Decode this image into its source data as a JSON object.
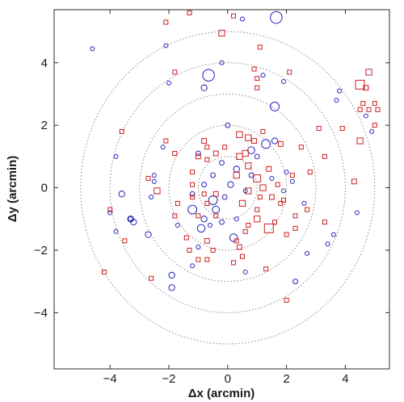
{
  "chart_data": {
    "type": "scatter",
    "title": "",
    "xlabel": "Δx (arcmin)",
    "ylabel": "Δy (arcmin)",
    "xlim": [
      -5.9,
      5.5
    ],
    "ylim": [
      -5.8,
      5.7
    ],
    "xticks": [
      -4,
      -2,
      0,
      2,
      4
    ],
    "yticks": [
      -4,
      -2,
      0,
      2,
      4
    ],
    "xtick_labels": [
      "−4",
      "−2",
      "0",
      "2",
      "4"
    ],
    "ytick_labels": [
      "−4",
      "−2",
      "0",
      "2",
      "4"
    ],
    "grid": false,
    "reference_circles": {
      "center": [
        0,
        0
      ],
      "radii": [
        1,
        2,
        3,
        4,
        5
      ],
      "style": "dotted",
      "color": "#888888"
    },
    "series": [
      {
        "marker": "circle",
        "color": "#2222bb",
        "points": [
          {
            "x": 1.65,
            "y": 5.45,
            "size": 0.2
          },
          {
            "x": -0.65,
            "y": 3.6,
            "size": 0.2
          },
          {
            "x": 1.6,
            "y": 2.6,
            "size": 0.15
          },
          {
            "x": -0.8,
            "y": 3.2,
            "size": 0.1
          },
          {
            "x": -2.0,
            "y": 3.35,
            "size": 0.06
          },
          {
            "x": -0.2,
            "y": 4.0,
            "size": 0.04
          },
          {
            "x": -4.6,
            "y": 4.45,
            "size": 0.04
          },
          {
            "x": -2.1,
            "y": 4.55,
            "size": 0.04
          },
          {
            "x": 0.5,
            "y": 5.4,
            "size": 0.04
          },
          {
            "x": 1.2,
            "y": 3.6,
            "size": 0.04
          },
          {
            "x": 1.9,
            "y": 3.4,
            "size": 0.04
          },
          {
            "x": 3.8,
            "y": 3.1,
            "size": 0.04
          },
          {
            "x": 3.7,
            "y": 2.8,
            "size": 0.04
          },
          {
            "x": 4.7,
            "y": 2.3,
            "size": 0.04
          },
          {
            "x": 4.9,
            "y": 1.8,
            "size": 0.04
          },
          {
            "x": -3.8,
            "y": 1.0,
            "size": 0.04
          },
          {
            "x": -2.2,
            "y": 1.3,
            "size": 0.04
          },
          {
            "x": 0.0,
            "y": 2.0,
            "size": 0.08
          },
          {
            "x": 1.3,
            "y": 1.4,
            "size": 0.15
          },
          {
            "x": 1.6,
            "y": 1.5,
            "size": 0.1
          },
          {
            "x": 0.8,
            "y": 1.2,
            "size": 0.12
          },
          {
            "x": 1.0,
            "y": 1.0,
            "size": 0.08
          },
          {
            "x": -1.0,
            "y": 1.1,
            "size": 0.08
          },
          {
            "x": -0.2,
            "y": 0.8,
            "size": 0.08
          },
          {
            "x": 0.3,
            "y": 0.6,
            "size": 0.1
          },
          {
            "x": -0.5,
            "y": 0.4,
            "size": 0.08
          },
          {
            "x": -0.8,
            "y": 0.1,
            "size": 0.08
          },
          {
            "x": -1.2,
            "y": -0.2,
            "size": 0.08
          },
          {
            "x": -0.5,
            "y": -0.4,
            "size": 0.15
          },
          {
            "x": -0.4,
            "y": -0.7,
            "size": 0.12
          },
          {
            "x": -1.2,
            "y": -0.7,
            "size": 0.15
          },
          {
            "x": -0.8,
            "y": -1.0,
            "size": 0.1
          },
          {
            "x": -0.9,
            "y": -1.3,
            "size": 0.13
          },
          {
            "x": -0.2,
            "y": -1.1,
            "size": 0.08
          },
          {
            "x": 0.1,
            "y": 0.1,
            "size": 0.1
          },
          {
            "x": -0.1,
            "y": -0.3,
            "size": 0.08
          },
          {
            "x": 0.2,
            "y": -1.6,
            "size": 0.13
          },
          {
            "x": 0.3,
            "y": -1.0,
            "size": 0.06
          },
          {
            "x": 0.6,
            "y": -0.1,
            "size": 0.06
          },
          {
            "x": 0.8,
            "y": 0.4,
            "size": 0.08
          },
          {
            "x": 1.5,
            "y": 0.3,
            "size": 0.06
          },
          {
            "x": 2.0,
            "y": 0.5,
            "size": 0.04
          },
          {
            "x": 1.9,
            "y": -0.1,
            "size": 0.04
          },
          {
            "x": 2.2,
            "y": 0.2,
            "size": 0.04
          },
          {
            "x": 2.6,
            "y": -0.5,
            "size": 0.04
          },
          {
            "x": -2.5,
            "y": 0.4,
            "size": 0.04
          },
          {
            "x": -2.6,
            "y": -0.3,
            "size": 0.04
          },
          {
            "x": -2.5,
            "y": 0.2,
            "size": 0.04
          },
          {
            "x": -3.6,
            "y": -0.2,
            "size": 0.1
          },
          {
            "x": -3.3,
            "y": -1.0,
            "size": 0.1
          },
          {
            "x": -3.2,
            "y": -1.1,
            "size": 0.1
          },
          {
            "x": -3.3,
            "y": -1.0,
            "size": 0.08
          },
          {
            "x": -2.7,
            "y": -1.5,
            "size": 0.1
          },
          {
            "x": -1.9,
            "y": -2.8,
            "size": 0.1
          },
          {
            "x": -1.9,
            "y": -3.2,
            "size": 0.1
          },
          {
            "x": -1.2,
            "y": -2.5,
            "size": 0.04
          },
          {
            "x": -1.0,
            "y": -1.9,
            "size": 0.04
          },
          {
            "x": -0.6,
            "y": -1.2,
            "size": 0.04
          },
          {
            "x": 0.6,
            "y": -2.7,
            "size": 0.04
          },
          {
            "x": 2.3,
            "y": -3.0,
            "size": 0.08
          },
          {
            "x": 2.7,
            "y": -2.1,
            "size": 0.04
          },
          {
            "x": 3.4,
            "y": -1.8,
            "size": 0.04
          },
          {
            "x": 3.6,
            "y": -1.5,
            "size": 0.04
          },
          {
            "x": 4.4,
            "y": -0.8,
            "size": 0.04
          },
          {
            "x": -3.8,
            "y": -1.4,
            "size": 0.04
          },
          {
            "x": -4.0,
            "y": -0.8,
            "size": 0.04
          },
          {
            "x": -1.7,
            "y": -1.2,
            "size": 0.04
          }
        ]
      },
      {
        "marker": "square",
        "color": "#cc2222",
        "points": [
          {
            "x": -1.3,
            "y": 5.6,
            "size": 0.04
          },
          {
            "x": 0.2,
            "y": 5.5,
            "size": 0.04
          },
          {
            "x": -0.2,
            "y": 4.95,
            "size": 0.1
          },
          {
            "x": -2.1,
            "y": 5.3,
            "size": 0.04
          },
          {
            "x": -1.8,
            "y": 3.7,
            "size": 0.04
          },
          {
            "x": 0.9,
            "y": 3.8,
            "size": 0.04
          },
          {
            "x": 1.0,
            "y": 3.5,
            "size": 0.04
          },
          {
            "x": 1.0,
            "y": 3.2,
            "size": 0.04
          },
          {
            "x": 2.1,
            "y": 3.7,
            "size": 0.04
          },
          {
            "x": 1.1,
            "y": 4.5,
            "size": 0.04
          },
          {
            "x": 4.8,
            "y": 3.7,
            "size": 0.1
          },
          {
            "x": 4.7,
            "y": 3.2,
            "size": 0.08
          },
          {
            "x": 4.5,
            "y": 3.3,
            "size": 0.15
          },
          {
            "x": 4.6,
            "y": 2.7,
            "size": 0.06
          },
          {
            "x": 4.8,
            "y": 2.5,
            "size": 0.06
          },
          {
            "x": 5.0,
            "y": 2.7,
            "size": 0.06
          },
          {
            "x": 5.1,
            "y": 2.5,
            "size": 0.04
          },
          {
            "x": 5.0,
            "y": 2.0,
            "size": 0.04
          },
          {
            "x": 4.5,
            "y": 2.5,
            "size": 0.04
          },
          {
            "x": 3.9,
            "y": 1.9,
            "size": 0.04
          },
          {
            "x": 3.1,
            "y": 1.9,
            "size": 0.04
          },
          {
            "x": 2.5,
            "y": 1.3,
            "size": 0.06
          },
          {
            "x": 4.5,
            "y": 1.5,
            "size": 0.1
          },
          {
            "x": 4.3,
            "y": 0.2,
            "size": 0.08
          },
          {
            "x": 3.3,
            "y": 1.0,
            "size": 0.04
          },
          {
            "x": -3.6,
            "y": 1.8,
            "size": 0.04
          },
          {
            "x": -2.1,
            "y": 1.5,
            "size": 0.04
          },
          {
            "x": -1.8,
            "y": 1.1,
            "size": 0.06
          },
          {
            "x": -0.8,
            "y": 1.5,
            "size": 0.08
          },
          {
            "x": -0.7,
            "y": 1.3,
            "size": 0.06
          },
          {
            "x": -1.0,
            "y": 1.0,
            "size": 0.08
          },
          {
            "x": -1.2,
            "y": 0.5,
            "size": 0.06
          },
          {
            "x": -0.7,
            "y": 0.9,
            "size": 0.06
          },
          {
            "x": -0.4,
            "y": 1.1,
            "size": 0.08
          },
          {
            "x": -0.1,
            "y": 1.3,
            "size": 0.06
          },
          {
            "x": 0.4,
            "y": 1.7,
            "size": 0.1
          },
          {
            "x": 0.7,
            "y": 1.6,
            "size": 0.1
          },
          {
            "x": 0.9,
            "y": 1.5,
            "size": 0.08
          },
          {
            "x": 1.2,
            "y": 1.8,
            "size": 0.06
          },
          {
            "x": 1.8,
            "y": 1.4,
            "size": 0.08
          },
          {
            "x": 0.4,
            "y": 1.0,
            "size": 0.1
          },
          {
            "x": 0.6,
            "y": 1.1,
            "size": 0.1
          },
          {
            "x": 0.3,
            "y": 0.4,
            "size": 0.1
          },
          {
            "x": 1.0,
            "y": 0.3,
            "size": 0.12
          },
          {
            "x": 1.2,
            "y": 0.0,
            "size": 0.1
          },
          {
            "x": 0.7,
            "y": -0.1,
            "size": 0.1
          },
          {
            "x": 0.5,
            "y": -0.5,
            "size": 0.1
          },
          {
            "x": 1.5,
            "y": -0.3,
            "size": 0.08
          },
          {
            "x": 1.8,
            "y": -0.5,
            "size": 0.06
          },
          {
            "x": 1.0,
            "y": -0.7,
            "size": 0.06
          },
          {
            "x": 1.0,
            "y": -1.0,
            "size": 0.1
          },
          {
            "x": 1.4,
            "y": -1.3,
            "size": 0.15
          },
          {
            "x": 2.0,
            "y": -1.5,
            "size": 0.06
          },
          {
            "x": 0.7,
            "y": -1.2,
            "size": 0.06
          },
          {
            "x": 0.3,
            "y": -1.7,
            "size": 0.06
          },
          {
            "x": 0.5,
            "y": -2.2,
            "size": 0.06
          },
          {
            "x": 0.2,
            "y": -2.4,
            "size": 0.04
          },
          {
            "x": 0.6,
            "y": -1.4,
            "size": 0.06
          },
          {
            "x": 1.6,
            "y": -1.1,
            "size": 0.04
          },
          {
            "x": 1.9,
            "y": -0.4,
            "size": 0.04
          },
          {
            "x": 2.3,
            "y": -0.9,
            "size": 0.04
          },
          {
            "x": -0.4,
            "y": -0.2,
            "size": 0.08
          },
          {
            "x": -0.7,
            "y": -0.5,
            "size": 0.06
          },
          {
            "x": -0.8,
            "y": -0.2,
            "size": 0.06
          },
          {
            "x": -1.2,
            "y": -0.3,
            "size": 0.06
          },
          {
            "x": -1.7,
            "y": -0.5,
            "size": 0.04
          },
          {
            "x": -1.0,
            "y": -0.9,
            "size": 0.06
          },
          {
            "x": -0.4,
            "y": -0.9,
            "size": 0.06
          },
          {
            "x": -0.7,
            "y": -1.7,
            "size": 0.08
          },
          {
            "x": -0.5,
            "y": -2.0,
            "size": 0.06
          },
          {
            "x": -1.3,
            "y": -2.0,
            "size": 0.06
          },
          {
            "x": -1.0,
            "y": -2.3,
            "size": 0.04
          },
          {
            "x": 0.4,
            "y": -1.9,
            "size": 0.08
          },
          {
            "x": -2.4,
            "y": -0.1,
            "size": 0.1
          },
          {
            "x": -2.7,
            "y": 0.3,
            "size": 0.04
          },
          {
            "x": -1.8,
            "y": -0.9,
            "size": 0.04
          },
          {
            "x": -3.5,
            "y": -1.7,
            "size": 0.04
          },
          {
            "x": -4.0,
            "y": -0.7,
            "size": 0.04
          },
          {
            "x": -4.2,
            "y": -2.7,
            "size": 0.04
          },
          {
            "x": -2.6,
            "y": -2.9,
            "size": 0.04
          },
          {
            "x": -0.7,
            "y": -2.3,
            "size": 0.06
          },
          {
            "x": 1.3,
            "y": -2.6,
            "size": 0.04
          },
          {
            "x": 2.3,
            "y": -1.3,
            "size": 0.04
          },
          {
            "x": 2.7,
            "y": -0.7,
            "size": 0.04
          },
          {
            "x": 3.3,
            "y": -1.1,
            "size": 0.04
          },
          {
            "x": 2.2,
            "y": 0.4,
            "size": 0.04
          },
          {
            "x": 2.8,
            "y": 0.5,
            "size": 0.04
          },
          {
            "x": 0.7,
            "y": 0.7,
            "size": 0.1
          },
          {
            "x": 1.4,
            "y": 0.6,
            "size": 0.08
          },
          {
            "x": -1.2,
            "y": 0.1,
            "size": 0.06
          },
          {
            "x": 2.0,
            "y": -3.6,
            "size": 0.04
          },
          {
            "x": -1.4,
            "y": -1.6,
            "size": 0.04
          },
          {
            "x": 1.7,
            "y": 0.1,
            "size": 0.06
          },
          {
            "x": 1.1,
            "y": -0.3,
            "size": 0.04
          }
        ]
      }
    ]
  }
}
